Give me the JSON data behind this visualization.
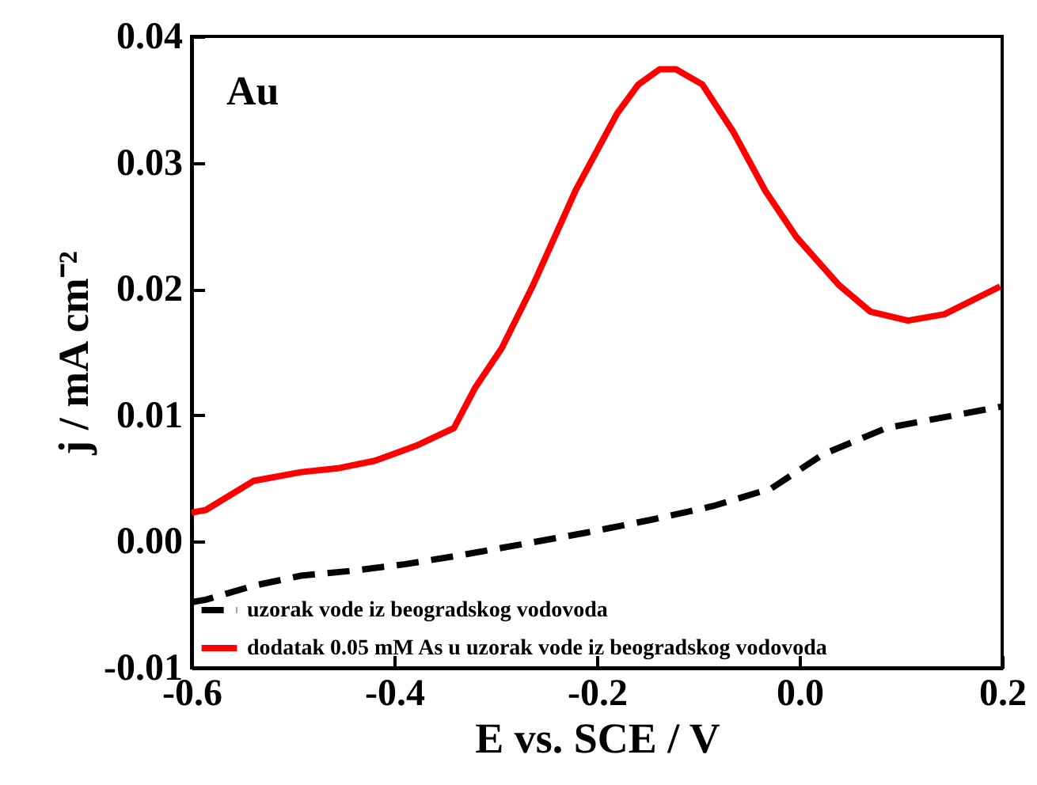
{
  "chart_data": {
    "type": "line",
    "xlabel": "E vs. SCE / V",
    "ylabel": "j / mA cm⁻²",
    "annotations": [
      "Au"
    ],
    "xlim": [
      -0.6,
      0.2
    ],
    "xticks": [
      -0.6,
      -0.4,
      -0.2,
      {
        "value": 0,
        "label": "0.0"
      },
      0.2
    ],
    "ylim": [
      -0.01,
      0.04
    ],
    "yticks": [
      -0.01,
      {
        "value": 0,
        "label": "0.00"
      },
      0.01,
      0.02,
      0.03,
      0.04
    ],
    "grid": false,
    "legend": "bottom left",
    "series": [
      {
        "name": "uzorak vode iz beogradskog vodovoda",
        "color": "#000000",
        "line_style": "dashed",
        "x": [
          -0.6,
          -0.586,
          -0.539,
          -0.492,
          -0.44,
          -0.39,
          -0.336,
          -0.273,
          -0.211,
          -0.148,
          -0.086,
          -0.028,
          0.023,
          0.086,
          0.2
        ],
        "values": [
          -0.0048,
          -0.0046,
          -0.0035,
          -0.0027,
          -0.0023,
          -0.0018,
          -0.0011,
          -0.0002,
          0.0007,
          0.0017,
          0.0028,
          0.0042,
          0.0069,
          0.009,
          0.0107
        ]
      },
      {
        "name": "dodatak 0.05 mM As u uzorak vode iz beogradskog vodovoda",
        "color": "#ff0000",
        "line_style": "solid",
        "x": [
          -0.6,
          -0.586,
          -0.539,
          -0.492,
          -0.456,
          -0.419,
          -0.378,
          -0.341,
          -0.32,
          -0.294,
          -0.263,
          -0.221,
          -0.18,
          -0.159,
          -0.138,
          -0.122,
          -0.096,
          -0.065,
          -0.034,
          -0.003,
          0.039,
          0.07,
          0.107,
          0.143,
          0.198
        ],
        "values": [
          0.0023,
          0.0025,
          0.0048,
          0.0055,
          0.0058,
          0.0064,
          0.0076,
          0.009,
          0.0122,
          0.0153,
          0.0203,
          0.0278,
          0.0339,
          0.0362,
          0.0374,
          0.0374,
          0.0362,
          0.0324,
          0.0278,
          0.0241,
          0.0203,
          0.0182,
          0.0175,
          0.018,
          0.0202
        ]
      }
    ]
  }
}
